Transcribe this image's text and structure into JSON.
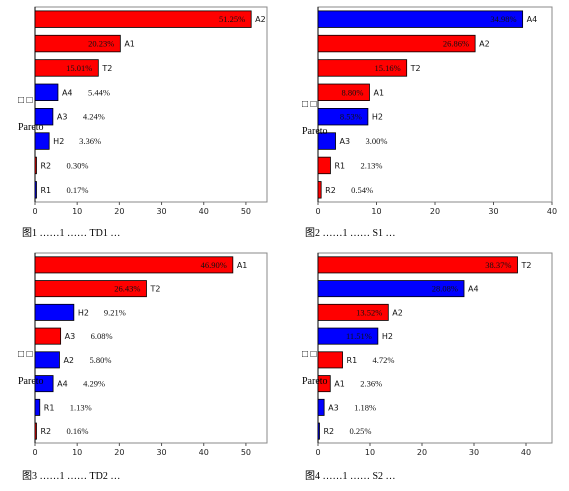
{
  "chart_data": [
    {
      "type": "bar",
      "orientation": "horizontal",
      "caption": "图1 ……1 …… TD1 …",
      "side_label_top": "□ □",
      "side_label": "Pareto",
      "xlim": [
        0,
        55
      ],
      "xticks": [
        0,
        10,
        20,
        30,
        40,
        50
      ],
      "categories": [
        "A2",
        "A1",
        "T2",
        "A4",
        "A3",
        "H2",
        "R2",
        "R1"
      ],
      "values": [
        51.25,
        20.23,
        15.01,
        5.44,
        4.24,
        3.36,
        0.3,
        0.17
      ],
      "labels": [
        "51.25%",
        "20.23%",
        "15.01%",
        "5.44%",
        "4.24%",
        "3.36%",
        "0.30%",
        "0.17%"
      ],
      "colors": [
        "#ff0000",
        "#ff0000",
        "#ff0000",
        "#0000ff",
        "#0000ff",
        "#0000ff",
        "#ff0000",
        "#0000ff"
      ]
    },
    {
      "type": "bar",
      "orientation": "horizontal",
      "caption": "图2 ……1 …… S1 …",
      "side_label_top": "□ □",
      "side_label": "Pareto",
      "xlim": [
        0,
        40
      ],
      "xticks": [
        0,
        10,
        20,
        30,
        40
      ],
      "categories": [
        "A4",
        "A2",
        "T2",
        "A1",
        "H2",
        "A3",
        "R1",
        "R2"
      ],
      "values": [
        34.98,
        26.86,
        15.16,
        8.8,
        8.53,
        3.0,
        2.13,
        0.54
      ],
      "labels": [
        "34.98%",
        "26.86%",
        "15.16%",
        "8.80%",
        "8.53%",
        "3.00%",
        "2.13%",
        "0.54%"
      ],
      "colors": [
        "#0000ff",
        "#ff0000",
        "#ff0000",
        "#ff0000",
        "#0000ff",
        "#0000ff",
        "#ff0000",
        "#ff0000"
      ]
    },
    {
      "type": "bar",
      "orientation": "horizontal",
      "caption": "图3 ……1 …… TD2 …",
      "side_label_top": "□ □",
      "side_label": "Pareto",
      "xlim": [
        0,
        55
      ],
      "xticks": [
        0,
        10,
        20,
        30,
        40,
        50
      ],
      "categories": [
        "A1",
        "T2",
        "H2",
        "A3",
        "A2",
        "A4",
        "R1",
        "R2"
      ],
      "values": [
        46.9,
        26.43,
        9.21,
        6.08,
        5.8,
        4.29,
        1.13,
        0.16
      ],
      "labels": [
        "46.90%",
        "26.43%",
        "9.21%",
        "6.08%",
        "5.80%",
        "4.29%",
        "1.13%",
        "0.16%"
      ],
      "colors": [
        "#ff0000",
        "#ff0000",
        "#0000ff",
        "#ff0000",
        "#0000ff",
        "#0000ff",
        "#0000ff",
        "#ff0000"
      ]
    },
    {
      "type": "bar",
      "orientation": "horizontal",
      "caption": "图4 ……1 …… S2 …",
      "side_label_top": "□ □",
      "side_label": "Pareto",
      "xlim": [
        0,
        45
      ],
      "xticks": [
        0,
        10,
        20,
        30,
        40
      ],
      "categories": [
        "T2",
        "A4",
        "A2",
        "H2",
        "R1",
        "A1",
        "A3",
        "R2"
      ],
      "values": [
        38.37,
        28.08,
        13.52,
        11.51,
        4.72,
        2.36,
        1.18,
        0.25
      ],
      "labels": [
        "38.37%",
        "28.08%",
        "13.52%",
        "11.51%",
        "4.72%",
        "2.36%",
        "1.18%",
        "0.25%"
      ],
      "colors": [
        "#ff0000",
        "#0000ff",
        "#ff0000",
        "#0000ff",
        "#ff0000",
        "#ff0000",
        "#0000ff",
        "#0000ff"
      ]
    }
  ]
}
